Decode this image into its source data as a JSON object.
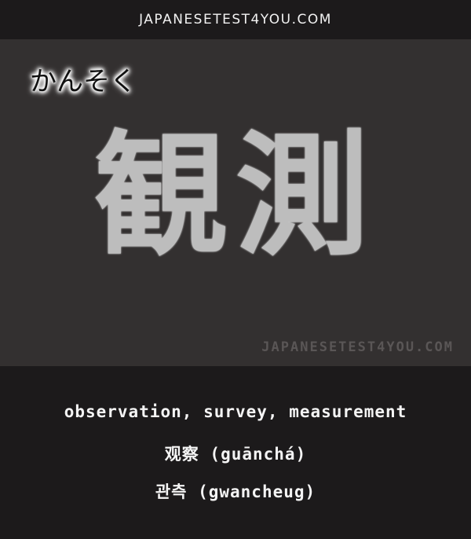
{
  "header": {
    "site": "JAPANESETEST4YOU.COM"
  },
  "card": {
    "reading": "かんそく",
    "kanji": "観測",
    "watermark": "JAPANESETEST4YOU.COM"
  },
  "info": {
    "meaning": "observation, survey, measurement",
    "chinese": "观察 (guānchá)",
    "korean": "관측 (gwancheug)"
  }
}
